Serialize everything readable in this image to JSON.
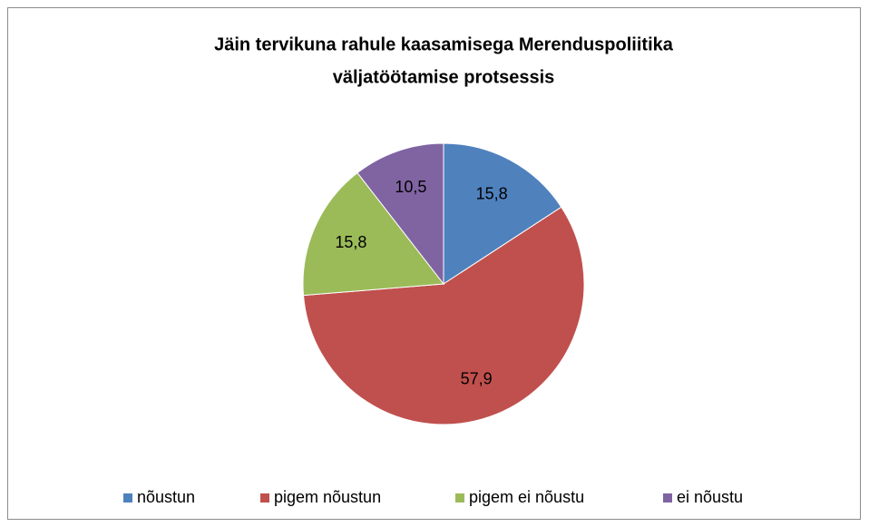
{
  "chart_data": {
    "type": "pie",
    "title": [
      "Jäin tervikuna rahule kaasamisega Merenduspoliitika",
      "väljatöötamise protsessis"
    ],
    "categories": [
      "nõustun",
      "pigem nõustun",
      "pigem ei nõustu",
      "ei nõustu"
    ],
    "values": [
      15.8,
      57.9,
      15.8,
      10.5
    ],
    "value_labels": [
      "15,8",
      "57,9",
      "15,8",
      "10,5"
    ],
    "colors": [
      "#4f81bd",
      "#c0504d",
      "#9bbb59",
      "#8064a2"
    ],
    "legend": "bottom"
  }
}
